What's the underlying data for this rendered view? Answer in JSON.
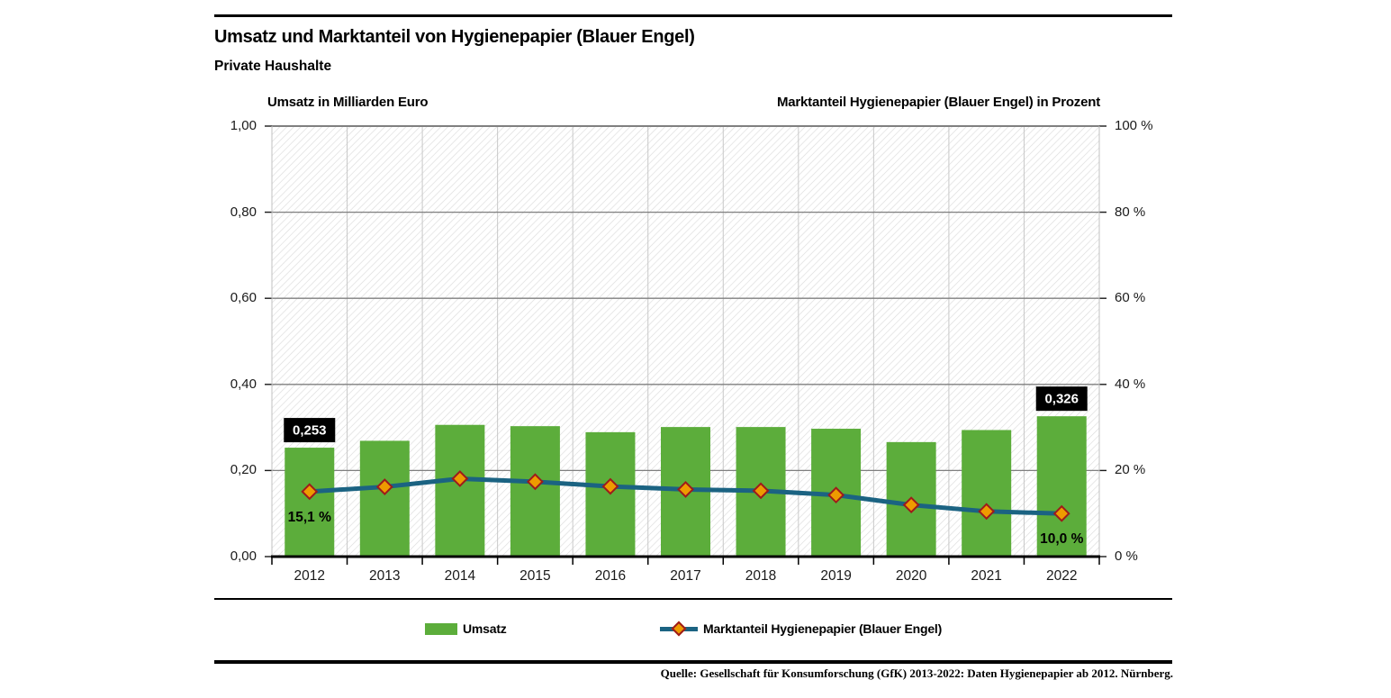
{
  "header": {
    "title": "Umsatz und Marktanteil von Hygienepapier (Blauer Engel)",
    "subtitle": "Private Haushalte"
  },
  "axis_titles": {
    "left": "Umsatz in Milliarden Euro",
    "right": "Marktanteil Hygienepapier (Blauer Engel) in Prozent"
  },
  "legend": {
    "items": [
      {
        "type": "bar",
        "label": "Umsatz"
      },
      {
        "type": "line",
        "label": "Marktanteil Hygienepapier (Blauer Engel)"
      }
    ]
  },
  "footer": {
    "source": "Quelle: Gesellschaft für Konsumforschung (GfK) 2013-2022: Daten Hygienepapier ab 2012. Nürnberg."
  },
  "colors": {
    "bar": "#5CAD3B",
    "line": "#1B6382",
    "marker_fill": "#EE9B00",
    "marker_border": "#9E1B1B",
    "label_box_bg": "#000000",
    "label_box_text": "#FFFFFF",
    "hatch": "#DCDCDC",
    "grid_h": "#7F7F7F",
    "grid_v": "#C8C8C8",
    "plot_border": "#808080",
    "side_border": "#C0C0C0",
    "axis": "#000000",
    "tick": "#1A1A1A"
  },
  "chart_data": {
    "type": "bar+line",
    "title": "Umsatz und Marktanteil von Hygienepapier (Blauer Engel)",
    "subtitle": "Private Haushalte",
    "categories": [
      "2012",
      "2013",
      "2014",
      "2015",
      "2016",
      "2017",
      "2018",
      "2019",
      "2020",
      "2021",
      "2022"
    ],
    "series": [
      {
        "name": "Umsatz",
        "type": "bar",
        "axis": "left",
        "values": [
          0.253,
          0.269,
          0.306,
          0.303,
          0.289,
          0.301,
          0.301,
          0.297,
          0.266,
          0.294,
          0.326
        ]
      },
      {
        "name": "Marktanteil Hygienepapier (Blauer Engel)",
        "type": "line",
        "axis": "right",
        "marker": "diamond",
        "values": [
          15.1,
          16.2,
          18.1,
          17.4,
          16.3,
          15.6,
          15.3,
          14.3,
          12.0,
          10.5,
          10.0
        ]
      }
    ],
    "left_axis": {
      "title": "Umsatz in Milliarden Euro",
      "min": 0,
      "max": 1,
      "tick_labels": [
        "0,00",
        "0,20",
        "0,40",
        "0,60",
        "0,80",
        "1,00"
      ]
    },
    "right_axis": {
      "title": "Marktanteil Hygienepapier (Blauer Engel) in Prozent",
      "min": 0,
      "max": 100,
      "tick_labels": [
        "0 %",
        "20 %",
        "40 %",
        "60 %",
        "80 %",
        "100 %"
      ]
    },
    "grid": {
      "horizontal": true,
      "vertical": true,
      "background": "diagonal-hatch"
    },
    "legend_position": "bottom",
    "annotations": [
      {
        "series": "Umsatz",
        "index": 0,
        "text": "0,253",
        "style": "black-box"
      },
      {
        "series": "Umsatz",
        "index": 10,
        "text": "0,326",
        "style": "black-box"
      },
      {
        "series": "Marktanteil Hygienepapier (Blauer Engel)",
        "index": 0,
        "text": "15,1 %",
        "style": "plain"
      },
      {
        "series": "Marktanteil Hygienepapier (Blauer Engel)",
        "index": 10,
        "text": "10,0 %",
        "style": "plain"
      }
    ]
  }
}
